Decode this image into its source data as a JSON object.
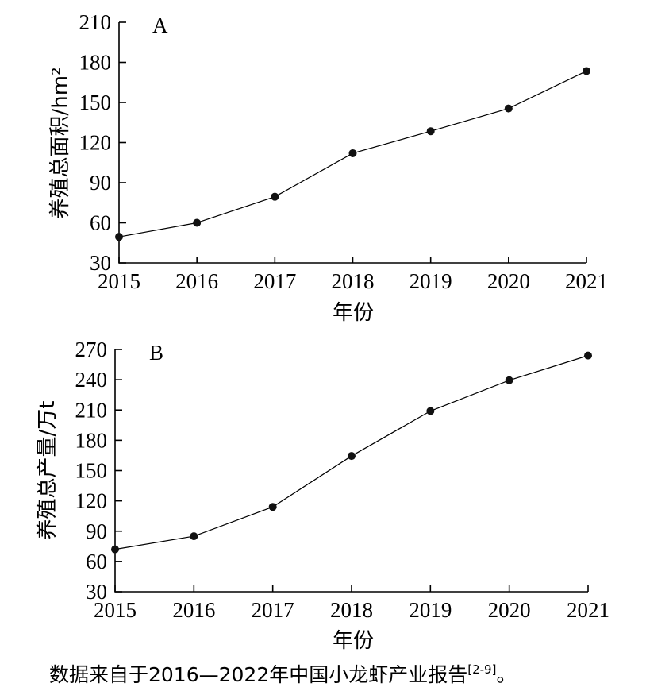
{
  "chart_data": [
    {
      "type": "line",
      "panel_label": "A",
      "x": [
        "2015",
        "2016",
        "2017",
        "2018",
        "2019",
        "2020",
        "2021"
      ],
      "values": [
        49.5,
        60,
        79.5,
        112,
        128.5,
        145.5,
        173.5
      ],
      "xlabel": "年份",
      "ylabel": "养殖总面积/hm²",
      "ylim": [
        30,
        210
      ],
      "yticks": [
        "30",
        "60",
        "90",
        "120",
        "150",
        "180",
        "210"
      ],
      "grid": false,
      "color": "#000000"
    },
    {
      "type": "line",
      "panel_label": "B",
      "x": [
        "2015",
        "2016",
        "2017",
        "2018",
        "2019",
        "2020",
        "2021"
      ],
      "values": [
        72,
        85,
        114,
        164.5,
        209,
        239.5,
        264
      ],
      "xlabel": "年份",
      "ylabel": "养殖总产量/万t",
      "ylim": [
        30,
        270
      ],
      "yticks": [
        "30",
        "60",
        "90",
        "120",
        "150",
        "180",
        "210",
        "240",
        "270"
      ],
      "grid": false,
      "color": "#000000"
    }
  ],
  "caption": {
    "text": "数据来自于2016—2022年中国小龙虾产业报告",
    "ref": "[2-9]",
    "end": "。"
  }
}
